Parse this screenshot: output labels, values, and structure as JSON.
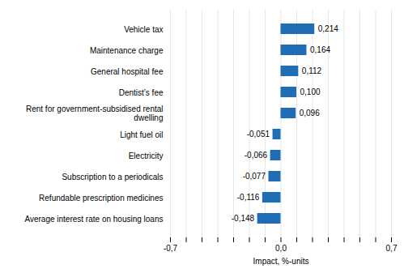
{
  "chart_data": {
    "type": "bar",
    "orientation": "horizontal",
    "categories": [
      "Average interest rate on housing loans",
      "Refundable prescription medicines",
      "Subscription to a periodicals",
      "Electricity",
      "Light fuel oil",
      "Rent for government-subsidised rental\ndwelling",
      "Dentist’s fee",
      "General hospital fee",
      "Maintenance charge",
      "Vehicle tax"
    ],
    "values": [
      -0.148,
      -0.116,
      -0.077,
      -0.066,
      -0.051,
      0.096,
      0.1,
      0.112,
      0.164,
      0.214
    ],
    "value_labels": [
      "-0,148",
      "-0,116",
      "-0,077",
      "-0,066",
      "-0,051",
      "0,096",
      "0,100",
      "0,112",
      "0,164",
      "0,214"
    ],
    "data_labels": true,
    "color": "#1f6eb5",
    "xlabel": "Impact, %-units",
    "xlim": [
      -0.7,
      0.7
    ],
    "xticks": [
      {
        "value": -0.7,
        "label": "-0,7"
      },
      {
        "value": -0.6,
        "label": null
      },
      {
        "value": -0.5,
        "label": null
      },
      {
        "value": -0.4,
        "label": null
      },
      {
        "value": -0.3,
        "label": null
      },
      {
        "value": -0.2,
        "label": null
      },
      {
        "value": -0.1,
        "label": null
      },
      {
        "value": 0.0,
        "label": "0,0"
      },
      {
        "value": 0.1,
        "label": null
      },
      {
        "value": 0.2,
        "label": null
      },
      {
        "value": 0.3,
        "label": null
      },
      {
        "value": 0.4,
        "label": null
      },
      {
        "value": 0.5,
        "label": null
      },
      {
        "value": 0.6,
        "label": null
      },
      {
        "value": 0.7,
        "label": "0,7"
      }
    ],
    "grid": true
  }
}
